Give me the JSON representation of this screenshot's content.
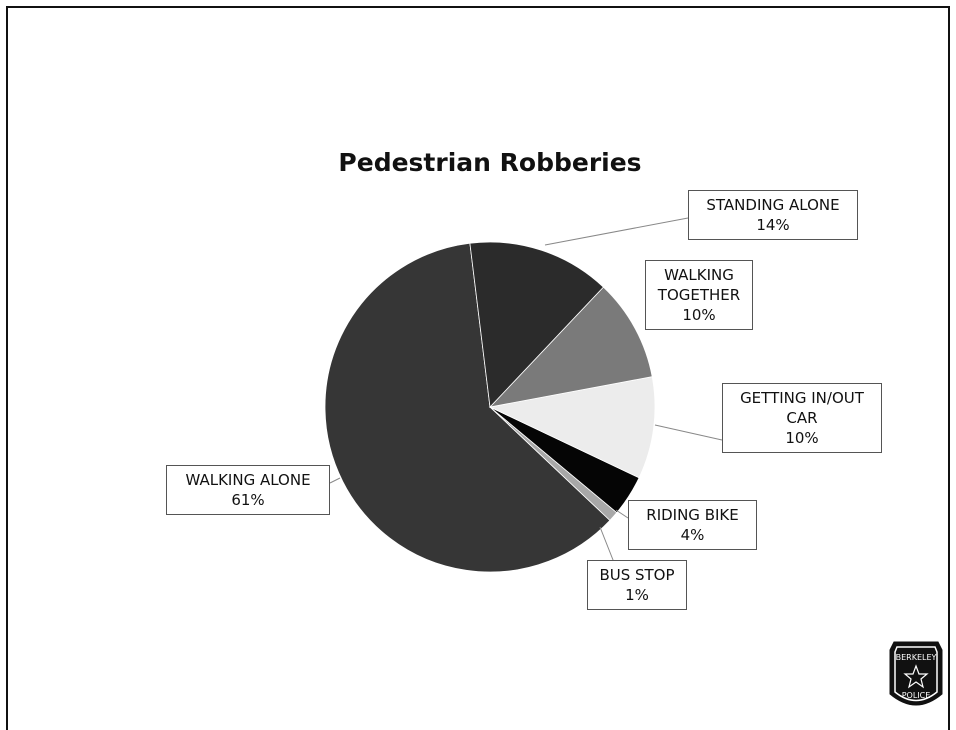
{
  "chart_data": {
    "type": "pie",
    "title": "Pedestrian Robberies",
    "categories": [
      "STANDING ALONE",
      "WALKING TOGETHER",
      "GETTING IN/OUT CAR",
      "RIDING BIKE",
      "BUS STOP",
      "WALKING ALONE"
    ],
    "values": [
      14,
      10,
      10,
      4,
      1,
      61
    ],
    "value_labels": [
      "14%",
      "10%",
      "10%",
      "4%",
      "1%",
      "61%"
    ],
    "colors": [
      "#2b2b2b",
      "#7a7a7a",
      "#ececec",
      "#050505",
      "#a8a8a8",
      "#363636"
    ]
  },
  "logo": {
    "top": "BERKELEY",
    "bottom": "POLICE"
  }
}
